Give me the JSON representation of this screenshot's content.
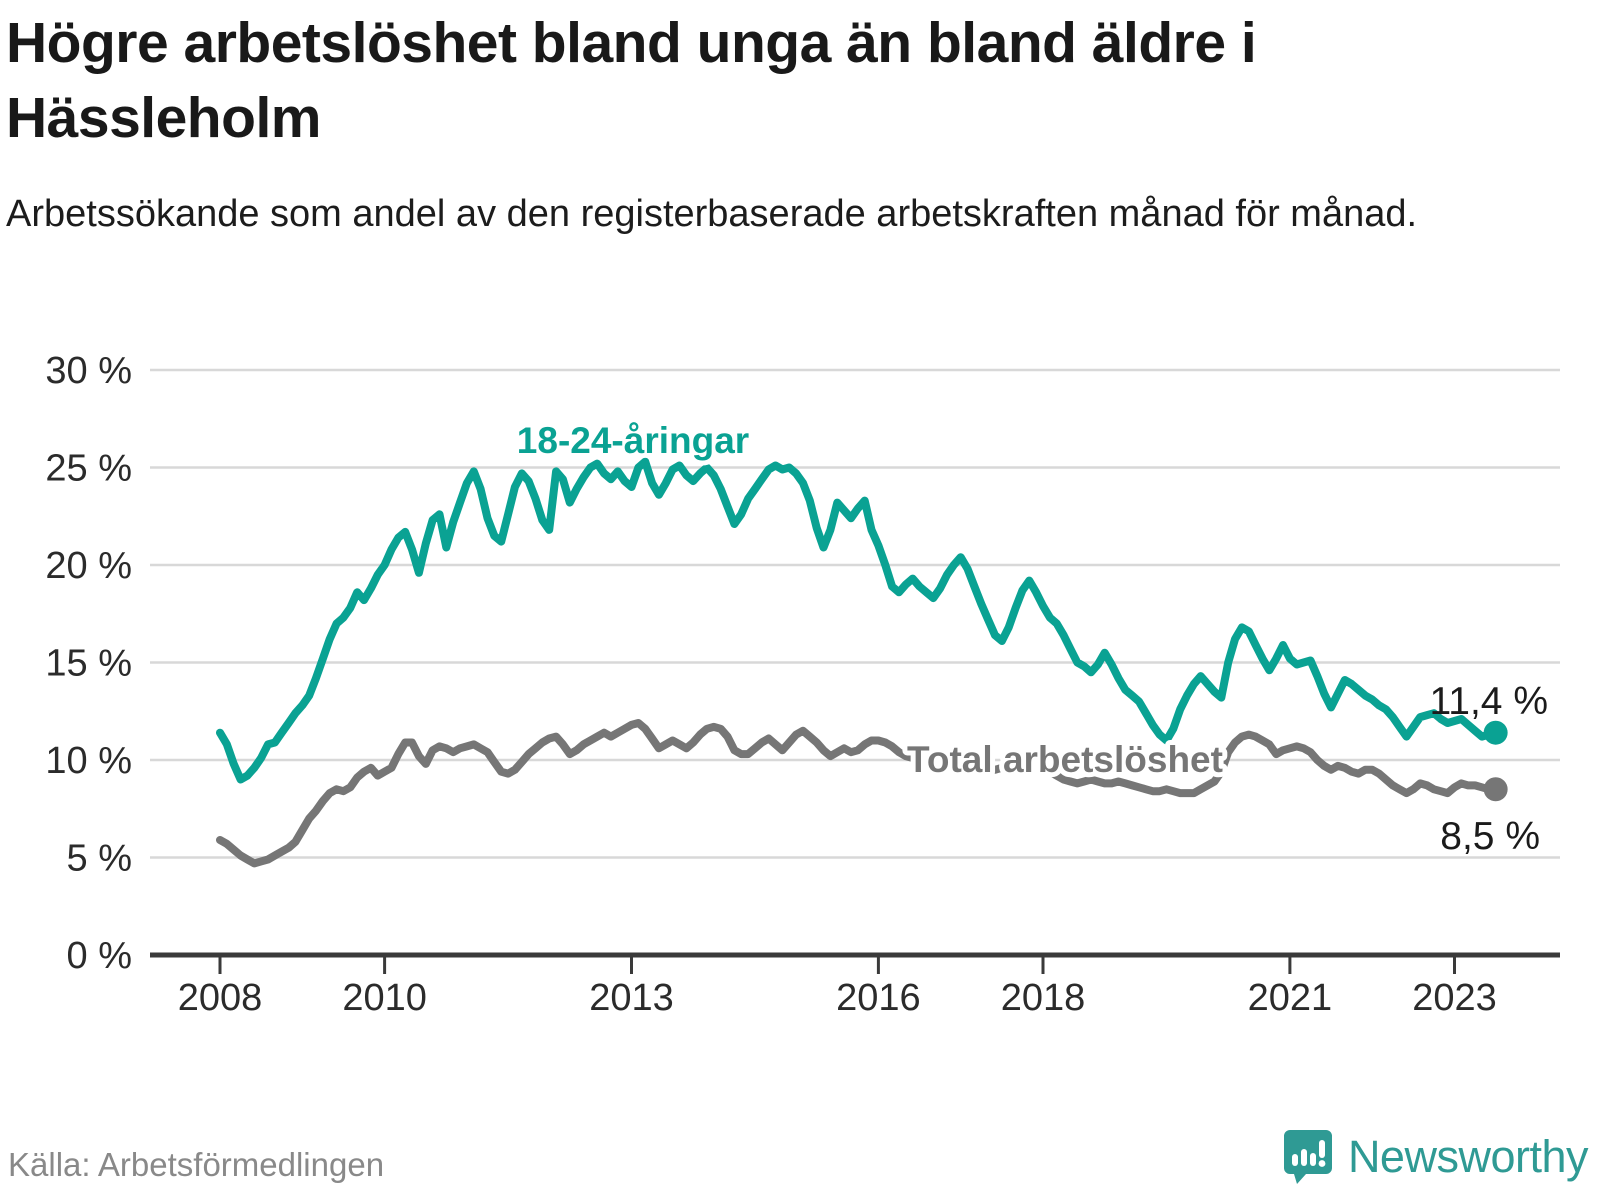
{
  "header": {
    "title": "Högre arbetslöshet bland unga än bland äldre i Hässleholm",
    "subtitle": "Arbetssökande som andel av den registerbaserade arbetskraften månad för månad."
  },
  "footer": {
    "source": "Källa: Arbetsförmedlingen",
    "brand": "Newsworthy"
  },
  "colors": {
    "youth": "#0aa293",
    "total": "#767676",
    "axis": "#3a3a3a",
    "grid": "#d8d8d8",
    "annotation": "#1b1b1b",
    "brand": "#2f9a94"
  },
  "chart_data": {
    "type": "line",
    "title": "Högre arbetslöshet bland unga än bland äldre i Hässleholm",
    "subtitle": "Arbetssökande som andel av den registerbaserade arbetskraften månad för månad.",
    "source": "Källa: Arbetsförmedlingen",
    "x_start_year": 2008,
    "x_step_months": 1,
    "xlabel": "",
    "ylabel": "",
    "ylim": [
      0,
      31.5
    ],
    "grid": "horizontal",
    "legend_position": "inline-labels",
    "xticks": [
      2008,
      2010,
      2013,
      2016,
      2018,
      2021,
      2023
    ],
    "yticks": [
      {
        "value": 30,
        "label": "30 %"
      },
      {
        "value": 25,
        "label": "25 %"
      },
      {
        "value": 20,
        "label": "20 %"
      },
      {
        "value": 15,
        "label": "15 %"
      },
      {
        "value": 10,
        "label": "10 %"
      },
      {
        "value": 5,
        "label": "5 %"
      },
      {
        "value": 0,
        "label": "0 %"
      }
    ],
    "series": [
      {
        "name": "18-24-åringar",
        "color": "#0aa293",
        "end_label": "11,4 %",
        "end_value": 11.4,
        "values": [
          11.4,
          10.8,
          9.8,
          9.0,
          9.2,
          9.6,
          10.1,
          10.8,
          10.9,
          11.4,
          11.9,
          12.4,
          12.8,
          13.3,
          14.2,
          15.2,
          16.2,
          17.0,
          17.3,
          17.8,
          18.6,
          18.2,
          18.8,
          19.5,
          20.0,
          20.8,
          21.4,
          21.7,
          20.8,
          19.6,
          21.1,
          22.3,
          22.6,
          20.9,
          22.2,
          23.2,
          24.2,
          24.8,
          23.9,
          22.4,
          21.5,
          21.2,
          22.6,
          24.0,
          24.7,
          24.3,
          23.4,
          22.3,
          21.8,
          24.8,
          24.4,
          23.2,
          23.9,
          24.5,
          25.0,
          25.2,
          24.7,
          24.4,
          24.8,
          24.3,
          24.0,
          25.0,
          25.3,
          24.2,
          23.6,
          24.2,
          24.9,
          25.1,
          24.6,
          24.3,
          24.7,
          25.0,
          24.6,
          23.9,
          23.0,
          22.1,
          22.6,
          23.4,
          23.9,
          24.4,
          24.9,
          25.1,
          24.9,
          25.0,
          24.7,
          24.2,
          23.3,
          21.9,
          20.9,
          21.8,
          23.2,
          22.8,
          22.4,
          22.9,
          23.3,
          21.8,
          21.0,
          20.0,
          18.9,
          18.6,
          19.0,
          19.3,
          18.9,
          18.6,
          18.3,
          18.8,
          19.5,
          20.0,
          20.4,
          19.8,
          18.9,
          18.0,
          17.2,
          16.4,
          16.1,
          16.8,
          17.8,
          18.7,
          19.2,
          18.6,
          17.9,
          17.3,
          17.0,
          16.4,
          15.7,
          15.0,
          14.8,
          14.5,
          14.9,
          15.5,
          14.9,
          14.2,
          13.6,
          13.3,
          13.0,
          12.4,
          11.8,
          11.3,
          11.0,
          11.6,
          12.6,
          13.3,
          13.9,
          14.3,
          13.9,
          13.5,
          13.2,
          15.0,
          16.2,
          16.8,
          16.6,
          15.9,
          15.2,
          14.6,
          15.2,
          15.9,
          15.2,
          14.9,
          15.0,
          15.1,
          14.3,
          13.4,
          12.7,
          13.4,
          14.1,
          13.9,
          13.6,
          13.3,
          13.1,
          12.8,
          12.6,
          12.2,
          11.7,
          11.2,
          11.7,
          12.2,
          12.3,
          12.4,
          12.1,
          11.9,
          12.0,
          12.1,
          11.8,
          11.5,
          11.2,
          11.3,
          11.4
        ]
      },
      {
        "name": "Total arbetslöshet",
        "color": "#767676",
        "end_label": "8,5 %",
        "end_value": 8.5,
        "values": [
          5.9,
          5.7,
          5.4,
          5.1,
          4.9,
          4.7,
          4.8,
          4.9,
          5.1,
          5.3,
          5.5,
          5.8,
          6.4,
          7.0,
          7.4,
          7.9,
          8.3,
          8.5,
          8.4,
          8.6,
          9.1,
          9.4,
          9.6,
          9.2,
          9.4,
          9.6,
          10.3,
          10.9,
          10.9,
          10.2,
          9.8,
          10.5,
          10.7,
          10.6,
          10.4,
          10.6,
          10.7,
          10.8,
          10.6,
          10.4,
          9.9,
          9.4,
          9.3,
          9.5,
          9.9,
          10.3,
          10.6,
          10.9,
          11.1,
          11.2,
          10.8,
          10.3,
          10.5,
          10.8,
          11.0,
          11.2,
          11.4,
          11.2,
          11.4,
          11.6,
          11.8,
          11.9,
          11.6,
          11.1,
          10.6,
          10.8,
          11.0,
          10.8,
          10.6,
          10.9,
          11.3,
          11.6,
          11.7,
          11.6,
          11.2,
          10.5,
          10.3,
          10.3,
          10.6,
          10.9,
          11.1,
          10.8,
          10.5,
          10.9,
          11.3,
          11.5,
          11.2,
          10.9,
          10.5,
          10.2,
          10.4,
          10.6,
          10.4,
          10.5,
          10.8,
          11.0,
          11.0,
          10.9,
          10.7,
          10.4,
          10.2,
          10.1,
          10.2,
          10.3,
          10.2,
          10.1,
          10.2,
          10.3,
          10.2,
          10.1,
          9.9,
          9.7,
          9.6,
          9.5,
          9.6,
          9.7,
          9.6,
          9.5,
          9.6,
          9.6,
          9.5,
          9.4,
          9.2,
          9.0,
          8.9,
          8.8,
          8.9,
          9.0,
          8.9,
          8.8,
          8.8,
          8.9,
          8.8,
          8.7,
          8.6,
          8.5,
          8.4,
          8.4,
          8.5,
          8.4,
          8.3,
          8.3,
          8.3,
          8.5,
          8.7,
          8.9,
          9.4,
          10.4,
          10.9,
          11.2,
          11.3,
          11.2,
          11.0,
          10.8,
          10.3,
          10.5,
          10.6,
          10.7,
          10.6,
          10.4,
          10.0,
          9.7,
          9.5,
          9.7,
          9.6,
          9.4,
          9.3,
          9.5,
          9.5,
          9.3,
          9.0,
          8.7,
          8.5,
          8.3,
          8.5,
          8.8,
          8.7,
          8.5,
          8.4,
          8.3,
          8.6,
          8.8,
          8.7,
          8.7,
          8.6,
          8.5,
          8.5
        ]
      }
    ]
  }
}
